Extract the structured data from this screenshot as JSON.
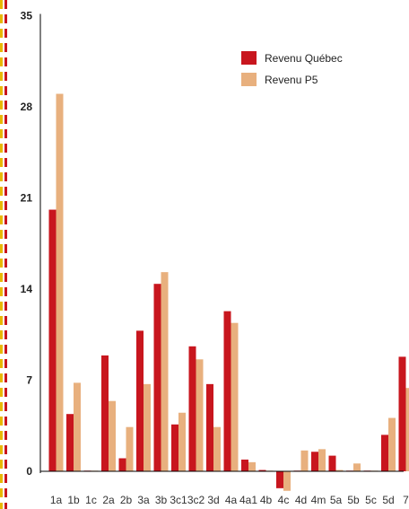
{
  "chart_data": {
    "type": "bar",
    "categories": [
      "1a",
      "1b",
      "1c",
      "2a",
      "2b",
      "3a",
      "3b",
      "3c1",
      "3c2",
      "3d",
      "4a",
      "4a1",
      "4b",
      "4c",
      "4d",
      "4m",
      "5a",
      "5b",
      "5c",
      "5d",
      "7"
    ],
    "series": [
      {
        "name": "Revenu Québec",
        "color": "#c8161e",
        "values": [
          20.1,
          4.4,
          0.05,
          8.9,
          1.0,
          10.8,
          14.4,
          3.6,
          9.6,
          6.7,
          12.3,
          0.9,
          0.1,
          -1.3,
          0.05,
          1.5,
          1.2,
          0.05,
          0.05,
          2.8,
          8.8
        ]
      },
      {
        "name": "Revenu P5",
        "color": "#e8b07e",
        "values": [
          29.0,
          6.8,
          0.05,
          5.4,
          3.4,
          6.7,
          15.3,
          4.5,
          8.6,
          3.4,
          11.4,
          0.7,
          0.05,
          -1.5,
          1.6,
          1.7,
          0.1,
          0.6,
          0.05,
          4.1,
          6.4
        ]
      }
    ],
    "yticks": [
      0,
      7,
      14,
      21,
      28,
      35
    ],
    "ylim": [
      -1.6,
      35
    ],
    "grid": false,
    "legend": "top-right",
    "decoration_border_colors": [
      "#e8b800",
      "#c8161e"
    ]
  }
}
